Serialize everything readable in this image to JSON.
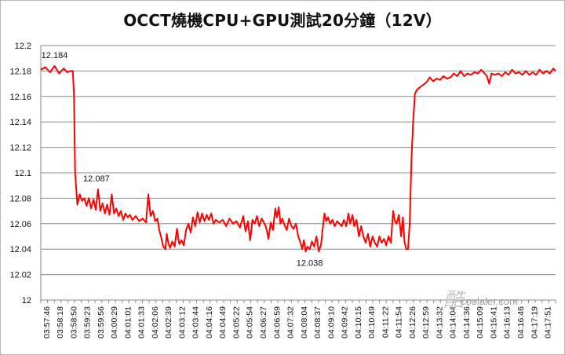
{
  "chart_data": {
    "type": "line",
    "title": "OCCT燒機CPU+GPU測試20分鐘（12V）",
    "xlabel": "",
    "ylabel": "",
    "ylim": [
      12,
      12.2
    ],
    "yticks": [
      "12.2",
      "12.18",
      "12.16",
      "12.14",
      "12.12",
      "12.1",
      "12.08",
      "12.06",
      "12.04",
      "12.02",
      "12"
    ],
    "xticks": [
      "03:57:46",
      "03:58:18",
      "03:58:50",
      "03:59:23",
      "03:59:56",
      "04:00:29",
      "04:01:01",
      "04:01:33",
      "04:02:06",
      "04:02:39",
      "04:03:12",
      "04:03:44",
      "04:04:16",
      "04:04:49",
      "04:05:22",
      "04:05:54",
      "04:06:27",
      "04:06:59",
      "04:07:32",
      "04:08:04",
      "04:08:37",
      "04:09:10",
      "04:09:42",
      "04:10:15",
      "04:10:49",
      "04:11:22",
      "04:11:54",
      "04:12:26",
      "04:12:59",
      "04:13:32",
      "04:14:04",
      "04:14:36",
      "04:15:09",
      "04:15:41",
      "04:16:13",
      "04:16:46",
      "04:17:19",
      "04:17:51"
    ],
    "grid": true,
    "series": [
      {
        "color": "#ff0000",
        "points": [
          [
            0,
            12.181
          ],
          [
            0.4,
            12.183
          ],
          [
            0.8,
            12.179
          ],
          [
            1.2,
            12.184
          ],
          [
            1.6,
            12.178
          ],
          [
            2.0,
            12.182
          ],
          [
            2.3,
            12.179
          ],
          [
            2.6,
            12.18
          ],
          [
            2.8,
            12.18
          ],
          [
            2.9,
            12.16
          ],
          [
            3.0,
            12.1
          ],
          [
            3.1,
            12.087
          ],
          [
            3.2,
            12.075
          ],
          [
            3.4,
            12.083
          ],
          [
            3.6,
            12.078
          ],
          [
            3.8,
            12.08
          ],
          [
            4.0,
            12.074
          ],
          [
            4.2,
            12.08
          ],
          [
            4.4,
            12.072
          ],
          [
            4.6,
            12.079
          ],
          [
            4.8,
            12.071
          ],
          [
            5.0,
            12.087
          ],
          [
            5.2,
            12.07
          ],
          [
            5.4,
            12.076
          ],
          [
            5.6,
            12.068
          ],
          [
            5.8,
            12.075
          ],
          [
            6.0,
            12.067
          ],
          [
            6.2,
            12.083
          ],
          [
            6.4,
            12.068
          ],
          [
            6.6,
            12.072
          ],
          [
            6.8,
            12.066
          ],
          [
            7.0,
            12.07
          ],
          [
            7.2,
            12.063
          ],
          [
            7.4,
            12.068
          ],
          [
            7.6,
            12.065
          ],
          [
            7.8,
            12.067
          ],
          [
            8.0,
            12.063
          ],
          [
            8.3,
            12.066
          ],
          [
            8.6,
            12.062
          ],
          [
            8.9,
            12.064
          ],
          [
            9.2,
            12.061
          ],
          [
            9.4,
            12.083
          ],
          [
            9.6,
            12.066
          ],
          [
            9.8,
            12.07
          ],
          [
            10.0,
            12.062
          ],
          [
            10.2,
            12.064
          ],
          [
            10.35,
            12.055
          ],
          [
            10.5,
            12.05
          ],
          [
            10.7,
            12.042
          ],
          [
            10.9,
            12.04
          ],
          [
            11.0,
            12.052
          ],
          [
            11.15,
            12.045
          ],
          [
            11.3,
            12.041
          ],
          [
            11.5,
            12.046
          ],
          [
            11.7,
            12.042
          ],
          [
            11.9,
            12.056
          ],
          [
            12.1,
            12.044
          ],
          [
            12.3,
            12.047
          ],
          [
            12.5,
            12.043
          ],
          [
            12.7,
            12.055
          ],
          [
            12.9,
            12.06
          ],
          [
            13.1,
            12.053
          ],
          [
            13.3,
            12.065
          ],
          [
            13.5,
            12.058
          ],
          [
            13.7,
            12.069
          ],
          [
            13.9,
            12.061
          ],
          [
            14.1,
            12.068
          ],
          [
            14.3,
            12.062
          ],
          [
            14.5,
            12.067
          ],
          [
            14.7,
            12.063
          ],
          [
            14.9,
            12.068
          ],
          [
            15.1,
            12.06
          ],
          [
            15.3,
            12.063
          ],
          [
            15.6,
            12.061
          ],
          [
            15.9,
            12.063
          ],
          [
            16.2,
            12.058
          ],
          [
            16.5,
            12.064
          ],
          [
            16.8,
            12.06
          ],
          [
            17.1,
            12.062
          ],
          [
            17.4,
            12.057
          ],
          [
            17.7,
            12.066
          ],
          [
            17.9,
            12.054
          ],
          [
            18.1,
            12.062
          ],
          [
            18.3,
            12.047
          ],
          [
            18.5,
            12.063
          ],
          [
            18.7,
            12.06
          ],
          [
            18.9,
            12.066
          ],
          [
            19.1,
            12.058
          ],
          [
            19.3,
            12.064
          ],
          [
            19.5,
            12.061
          ],
          [
            19.7,
            12.057
          ],
          [
            19.9,
            12.048
          ],
          [
            20.1,
            12.061
          ],
          [
            20.3,
            12.055
          ],
          [
            20.5,
            12.072
          ],
          [
            20.65,
            12.065
          ],
          [
            20.8,
            12.073
          ],
          [
            20.95,
            12.06
          ],
          [
            21.1,
            12.064
          ],
          [
            21.3,
            12.059
          ],
          [
            21.5,
            12.055
          ],
          [
            21.7,
            12.064
          ],
          [
            21.9,
            12.058
          ],
          [
            22.1,
            12.056
          ],
          [
            22.3,
            12.06
          ],
          [
            22.5,
            12.05
          ],
          [
            22.7,
            12.045
          ],
          [
            22.85,
            12.04
          ],
          [
            23.0,
            12.047
          ],
          [
            23.15,
            12.038
          ],
          [
            23.3,
            12.042
          ],
          [
            23.5,
            12.04
          ],
          [
            23.7,
            12.046
          ],
          [
            23.9,
            12.042
          ],
          [
            24.1,
            12.05
          ],
          [
            24.3,
            12.038
          ],
          [
            24.5,
            12.044
          ],
          [
            24.7,
            12.061
          ],
          [
            24.8,
            12.068
          ],
          [
            24.95,
            12.062
          ],
          [
            25.1,
            12.065
          ],
          [
            25.3,
            12.06
          ],
          [
            25.5,
            12.063
          ],
          [
            25.7,
            12.058
          ],
          [
            25.9,
            12.062
          ],
          [
            26.1,
            12.06
          ],
          [
            26.3,
            12.058
          ],
          [
            26.5,
            12.063
          ],
          [
            26.7,
            12.058
          ],
          [
            26.9,
            12.068
          ],
          [
            27.05,
            12.06
          ],
          [
            27.25,
            12.067
          ],
          [
            27.4,
            12.058
          ],
          [
            27.6,
            12.063
          ],
          [
            27.8,
            12.05
          ],
          [
            28.0,
            12.058
          ],
          [
            28.2,
            12.05
          ],
          [
            28.4,
            12.045
          ],
          [
            28.6,
            12.052
          ],
          [
            28.8,
            12.042
          ],
          [
            29.0,
            12.05
          ],
          [
            29.2,
            12.045
          ],
          [
            29.4,
            12.042
          ],
          [
            29.6,
            12.05
          ],
          [
            29.8,
            12.045
          ],
          [
            30.0,
            12.048
          ],
          [
            30.2,
            12.043
          ],
          [
            30.4,
            12.05
          ],
          [
            30.6,
            12.045
          ],
          [
            30.8,
            12.07
          ],
          [
            30.95,
            12.062
          ],
          [
            31.1,
            12.06
          ],
          [
            31.3,
            12.067
          ],
          [
            31.5,
            12.05
          ],
          [
            31.65,
            12.065
          ],
          [
            31.8,
            12.045
          ],
          [
            31.95,
            12.04
          ],
          [
            32.1,
            12.04
          ],
          [
            32.25,
            12.06
          ],
          [
            32.4,
            12.11
          ],
          [
            32.55,
            12.14
          ],
          [
            32.7,
            12.162
          ],
          [
            32.85,
            12.165
          ],
          [
            33.1,
            12.167
          ],
          [
            33.4,
            12.169
          ],
          [
            33.7,
            12.171
          ],
          [
            34.0,
            12.175
          ],
          [
            34.3,
            12.172
          ],
          [
            34.6,
            12.174
          ],
          [
            34.9,
            12.173
          ],
          [
            35.2,
            12.176
          ],
          [
            35.5,
            12.174
          ],
          [
            35.8,
            12.175
          ],
          [
            36.1,
            12.178
          ],
          [
            36.4,
            12.176
          ],
          [
            36.7,
            12.18
          ],
          [
            37.0,
            12.176
          ],
          [
            37.3,
            12.178
          ],
          [
            37.6,
            12.177
          ],
          [
            37.9,
            12.179
          ],
          [
            38.2,
            12.178
          ],
          [
            38.5,
            12.181
          ],
          [
            38.8,
            12.178
          ],
          [
            39.0,
            12.176
          ],
          [
            39.2,
            12.17
          ],
          [
            39.4,
            12.178
          ],
          [
            39.7,
            12.177
          ],
          [
            40.0,
            12.178
          ],
          [
            40.3,
            12.176
          ],
          [
            40.6,
            12.179
          ],
          [
            40.9,
            12.177
          ],
          [
            41.2,
            12.181
          ],
          [
            41.5,
            12.178
          ],
          [
            41.8,
            12.179
          ],
          [
            42.1,
            12.177
          ],
          [
            42.4,
            12.18
          ],
          [
            42.7,
            12.177
          ],
          [
            43.0,
            12.179
          ],
          [
            43.3,
            12.177
          ],
          [
            43.6,
            12.181
          ],
          [
            43.9,
            12.178
          ],
          [
            44.2,
            12.18
          ],
          [
            44.5,
            12.178
          ],
          [
            44.8,
            12.182
          ],
          [
            45.0,
            12.18
          ]
        ]
      }
    ],
    "annotations": [
      {
        "text": "12.184",
        "x": 1.2,
        "y": 12.184
      },
      {
        "text": "12.087",
        "x": 5.0,
        "y": 12.087
      },
      {
        "text": "12.038",
        "x": 23.5,
        "y": 12.038
      }
    ]
  },
  "watermark": "coolaler.com"
}
